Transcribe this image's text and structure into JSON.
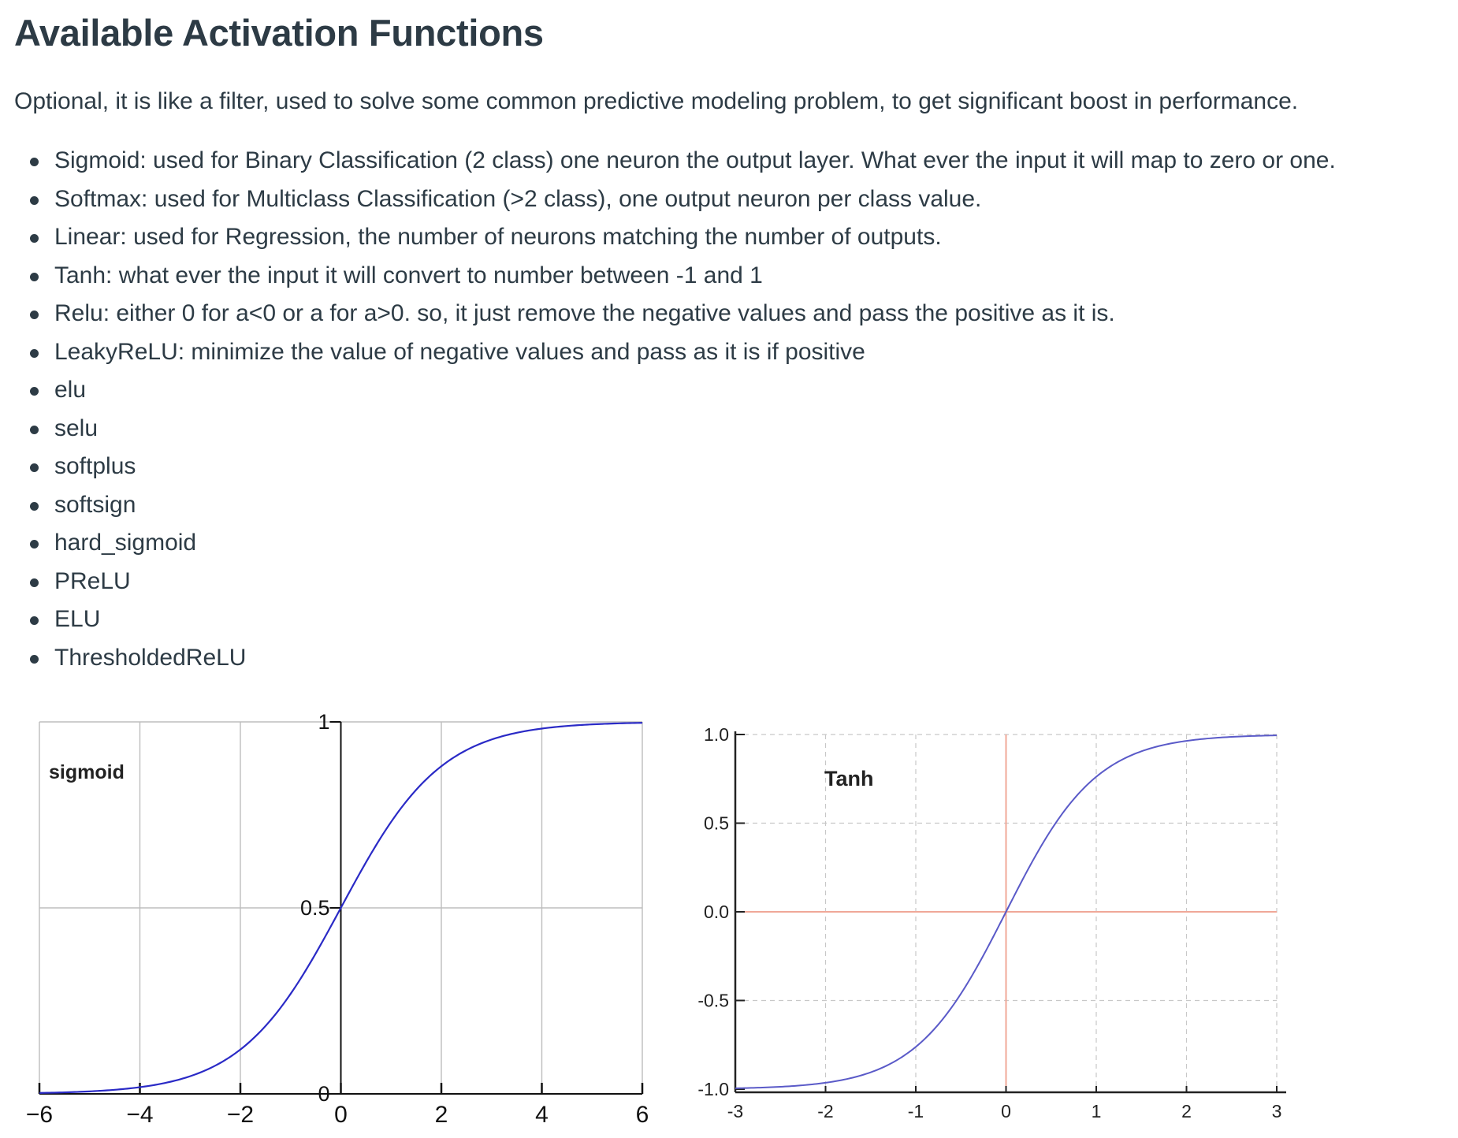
{
  "page": {
    "title": "Available Activation Functions",
    "intro": "Optional, it is like a filter, used to solve some common predictive modeling problem, to get significant boost in performance.",
    "items": [
      "Sigmoid: used for Binary Classification (2 class) one neuron the output layer. What ever the input it will map to zero or one.",
      "Softmax: used for Multiclass Classification (>2 class), one output neuron per class value.",
      "Linear: used for Regression, the number of neurons matching the number of outputs.",
      "Tanh: what ever the input it will convert to number between -1 and 1",
      "Relu: either 0 for a<0 or a for a>0. so, it just remove the negative values and pass the positive as it is.",
      "LeakyReLU: minimize the value of negative values and pass as it is if positive",
      "elu",
      "selu",
      "softplus",
      "softsign",
      "hard_sigmoid",
      "PReLU",
      "ELU",
      "ThresholdedReLU"
    ]
  },
  "chart_data": [
    {
      "type": "line",
      "title": "sigmoid",
      "function": "sigmoid",
      "xlim": [
        -6,
        6
      ],
      "ylim": [
        0,
        1
      ],
      "x_ticks": [
        -6,
        -4,
        -2,
        0,
        2,
        4,
        6
      ],
      "x_tick_labels": [
        "−6",
        "−4",
        "−2",
        "0",
        "2",
        "4",
        "6"
      ],
      "y_ticks": [
        0,
        0.5,
        1
      ],
      "y_tick_labels": [
        "0",
        "0.5",
        "1"
      ],
      "grid": true,
      "line_color": "#2a2ac6",
      "x": [
        -6,
        -5,
        -4,
        -3,
        -2,
        -1,
        0,
        1,
        2,
        3,
        4,
        5,
        6
      ],
      "y": [
        0.0025,
        0.0067,
        0.018,
        0.047,
        0.119,
        0.269,
        0.5,
        0.731,
        0.881,
        0.953,
        0.982,
        0.9933,
        0.9975
      ]
    },
    {
      "type": "line",
      "title": "Tanh",
      "function": "tanh",
      "xlim": [
        -3,
        3
      ],
      "ylim": [
        -1,
        1
      ],
      "x_ticks": [
        -3,
        -2,
        -1,
        0,
        1,
        2,
        3
      ],
      "x_tick_labels": [
        "-3",
        "-2",
        "-1",
        "0",
        "1",
        "2",
        "3"
      ],
      "y_ticks": [
        -1,
        -0.5,
        0,
        0.5,
        1
      ],
      "y_tick_labels": [
        "-1.0",
        "-0.5",
        "0.0",
        "0.5",
        "1.0"
      ],
      "grid": true,
      "line_color": "#5a5ac8",
      "axis_color": "#f0a898",
      "x": [
        -3,
        -2.5,
        -2,
        -1.5,
        -1,
        -0.5,
        0,
        0.5,
        1,
        1.5,
        2,
        2.5,
        3
      ],
      "y": [
        -0.995,
        -0.987,
        -0.964,
        -0.905,
        -0.762,
        -0.462,
        0,
        0.462,
        0.762,
        0.905,
        0.964,
        0.987,
        0.995
      ]
    }
  ]
}
